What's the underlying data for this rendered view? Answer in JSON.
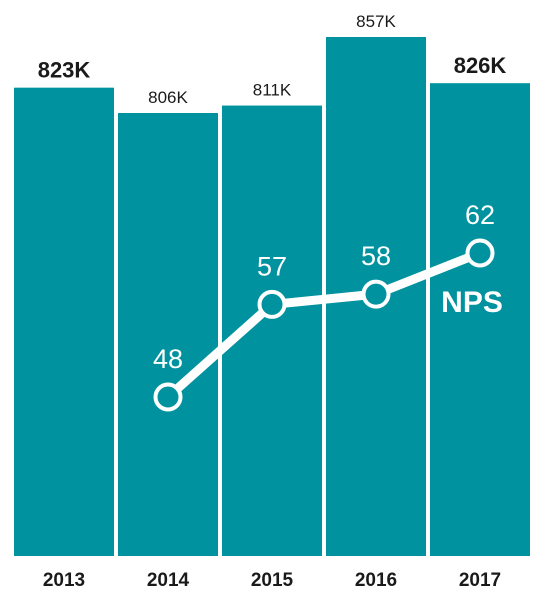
{
  "chart_data": {
    "type": "bar",
    "title": "",
    "xlabel": "",
    "ylabel": "",
    "categories": [
      "2013",
      "2014",
      "2015",
      "2016",
      "2017"
    ],
    "series": [
      {
        "type": "bar",
        "values": [
          823,
          806,
          811,
          857,
          826
        ],
        "data_labels": [
          "823K",
          "806K",
          "811K",
          "857K",
          "826K"
        ],
        "bold_labels": [
          true,
          false,
          false,
          false,
          true
        ],
        "color": "#00929f"
      },
      {
        "type": "line",
        "name": "NPS",
        "values": [
          null,
          48,
          57,
          58,
          62
        ],
        "data_labels": [
          "",
          "48",
          "57",
          "58",
          "62"
        ],
        "color": "#ffffff"
      }
    ],
    "grid": false,
    "legend": "none"
  }
}
